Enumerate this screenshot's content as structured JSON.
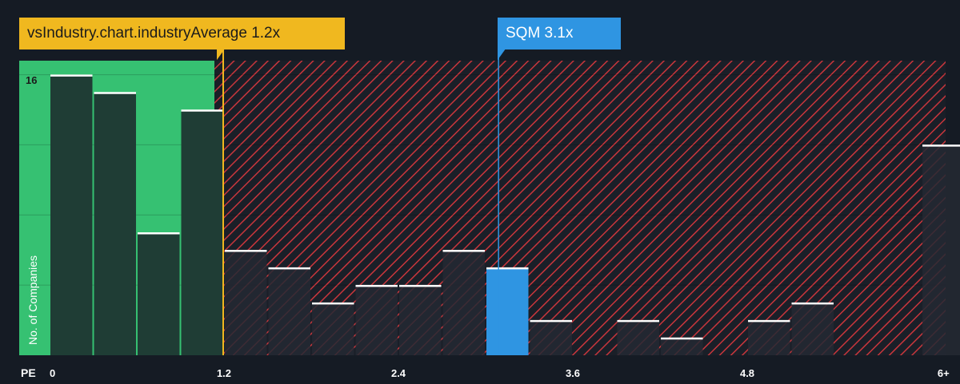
{
  "chart_data": {
    "type": "bar",
    "xlabel": "PE",
    "ylabel": "No. of Companies",
    "x_ticks": [
      "0",
      "1.2",
      "2.4",
      "3.6",
      "4.8",
      "6+"
    ],
    "y_ticks": [
      "16"
    ],
    "ylim": [
      0,
      16.8
    ],
    "bin_width": 0.3,
    "bars": [
      {
        "x": 0.0,
        "value": 16
      },
      {
        "x": 0.3,
        "value": 15
      },
      {
        "x": 0.6,
        "value": 7
      },
      {
        "x": 0.9,
        "value": 14
      },
      {
        "x": 1.2,
        "value": 6
      },
      {
        "x": 1.5,
        "value": 5
      },
      {
        "x": 1.8,
        "value": 3
      },
      {
        "x": 2.1,
        "value": 4
      },
      {
        "x": 2.4,
        "value": 4
      },
      {
        "x": 2.7,
        "value": 6
      },
      {
        "x": 3.0,
        "value": 5,
        "highlight": true
      },
      {
        "x": 3.3,
        "value": 2
      },
      {
        "x": 3.6,
        "value": 0
      },
      {
        "x": 3.9,
        "value": 2
      },
      {
        "x": 4.2,
        "value": 1
      },
      {
        "x": 4.5,
        "value": 0
      },
      {
        "x": 4.8,
        "value": 2
      },
      {
        "x": 5.1,
        "value": 3
      },
      {
        "x": 5.4,
        "value": 0
      },
      {
        "x": 5.7,
        "value": 0
      },
      {
        "x": 6.0,
        "value": 12
      }
    ],
    "industry_average": {
      "label": "vsIndustry.chart.industryAverage 1.2x",
      "value": 1.2
    },
    "company": {
      "label": "SQM 3.1x",
      "value": 3.1
    },
    "colors": {
      "background": "#151b24",
      "below_average_zone": "#36c172",
      "above_average_hatch": "#c9363c",
      "bar_dark": "#1f3d35",
      "bar_muted": "#252932",
      "bar_highlight": "#2f95e2",
      "industry_line": "#f0b81f",
      "company_line": "#2f95e2",
      "bar_cap": "#ffffff"
    },
    "grid": true
  }
}
